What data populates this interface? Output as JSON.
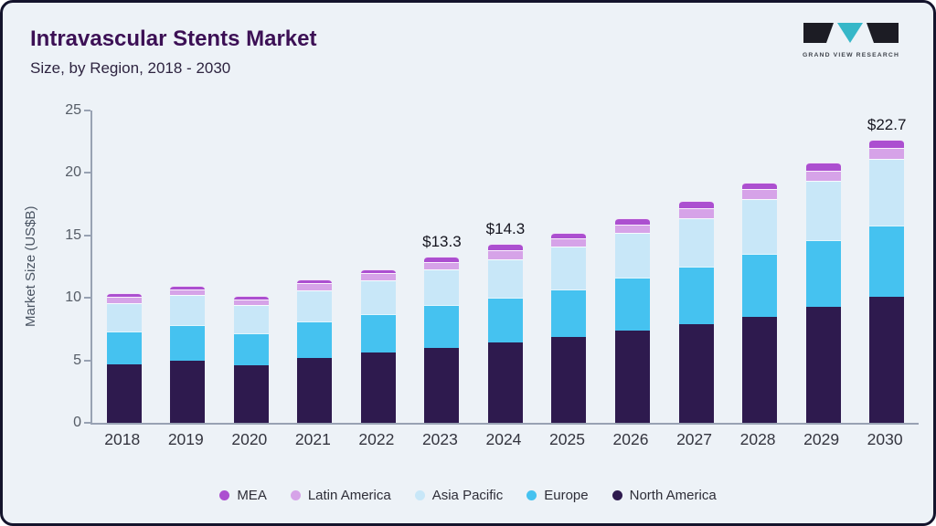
{
  "header": {
    "title": "Intravascular Stents Market",
    "subtitle": "Size, by Region, 2018 - 2030",
    "logo_text": "GRAND VIEW RESEARCH",
    "logo_teal": "#36b7c8",
    "logo_dark": "#1c1c24"
  },
  "chart_data": {
    "type": "bar",
    "stacked": true,
    "title": "Intravascular Stents Market Size, by Region, 2018 - 2030",
    "xlabel": "",
    "ylabel": "Market Size (US$B)",
    "ylim": [
      0,
      25
    ],
    "yticks": [
      0,
      5,
      10,
      15,
      20,
      25
    ],
    "grid": false,
    "legend_position": "bottom",
    "categories": [
      "2018",
      "2019",
      "2020",
      "2021",
      "2022",
      "2023",
      "2024",
      "2025",
      "2026",
      "2027",
      "2028",
      "2029",
      "2030"
    ],
    "series": [
      {
        "name": "North America",
        "color": "#2e1a4e",
        "values": [
          4.7,
          5.0,
          4.6,
          5.2,
          5.6,
          6.0,
          6.4,
          6.9,
          7.4,
          7.9,
          8.5,
          9.3,
          10.1
        ]
      },
      {
        "name": "Europe",
        "color": "#45c2f0",
        "values": [
          2.6,
          2.8,
          2.6,
          2.9,
          3.1,
          3.4,
          3.6,
          3.8,
          4.2,
          4.6,
          5.0,
          5.3,
          5.7
        ]
      },
      {
        "name": "Asia Pacific",
        "color": "#c8e7f8",
        "values": [
          2.3,
          2.4,
          2.2,
          2.5,
          2.7,
          2.9,
          3.1,
          3.4,
          3.6,
          3.9,
          4.4,
          4.8,
          5.3
        ]
      },
      {
        "name": "Latin America",
        "color": "#d6a3e8",
        "values": [
          0.5,
          0.5,
          0.5,
          0.6,
          0.6,
          0.6,
          0.7,
          0.7,
          0.7,
          0.8,
          0.8,
          0.8,
          0.9
        ]
      },
      {
        "name": "MEA",
        "color": "#ac4fd0",
        "values": [
          0.3,
          0.3,
          0.3,
          0.3,
          0.3,
          0.4,
          0.5,
          0.4,
          0.5,
          0.6,
          0.5,
          0.6,
          0.7
        ]
      }
    ],
    "totals": [
      10.4,
      11.0,
      10.2,
      11.5,
      12.3,
      13.3,
      14.3,
      15.2,
      16.4,
      17.8,
      19.2,
      20.8,
      22.7
    ],
    "annotations": [
      {
        "category": "2023",
        "label": "$13.3"
      },
      {
        "category": "2024",
        "label": "$14.3"
      },
      {
        "category": "2030",
        "label": "$22.7"
      }
    ],
    "legend_order": [
      "MEA",
      "Latin America",
      "Asia Pacific",
      "Europe",
      "North America"
    ]
  }
}
